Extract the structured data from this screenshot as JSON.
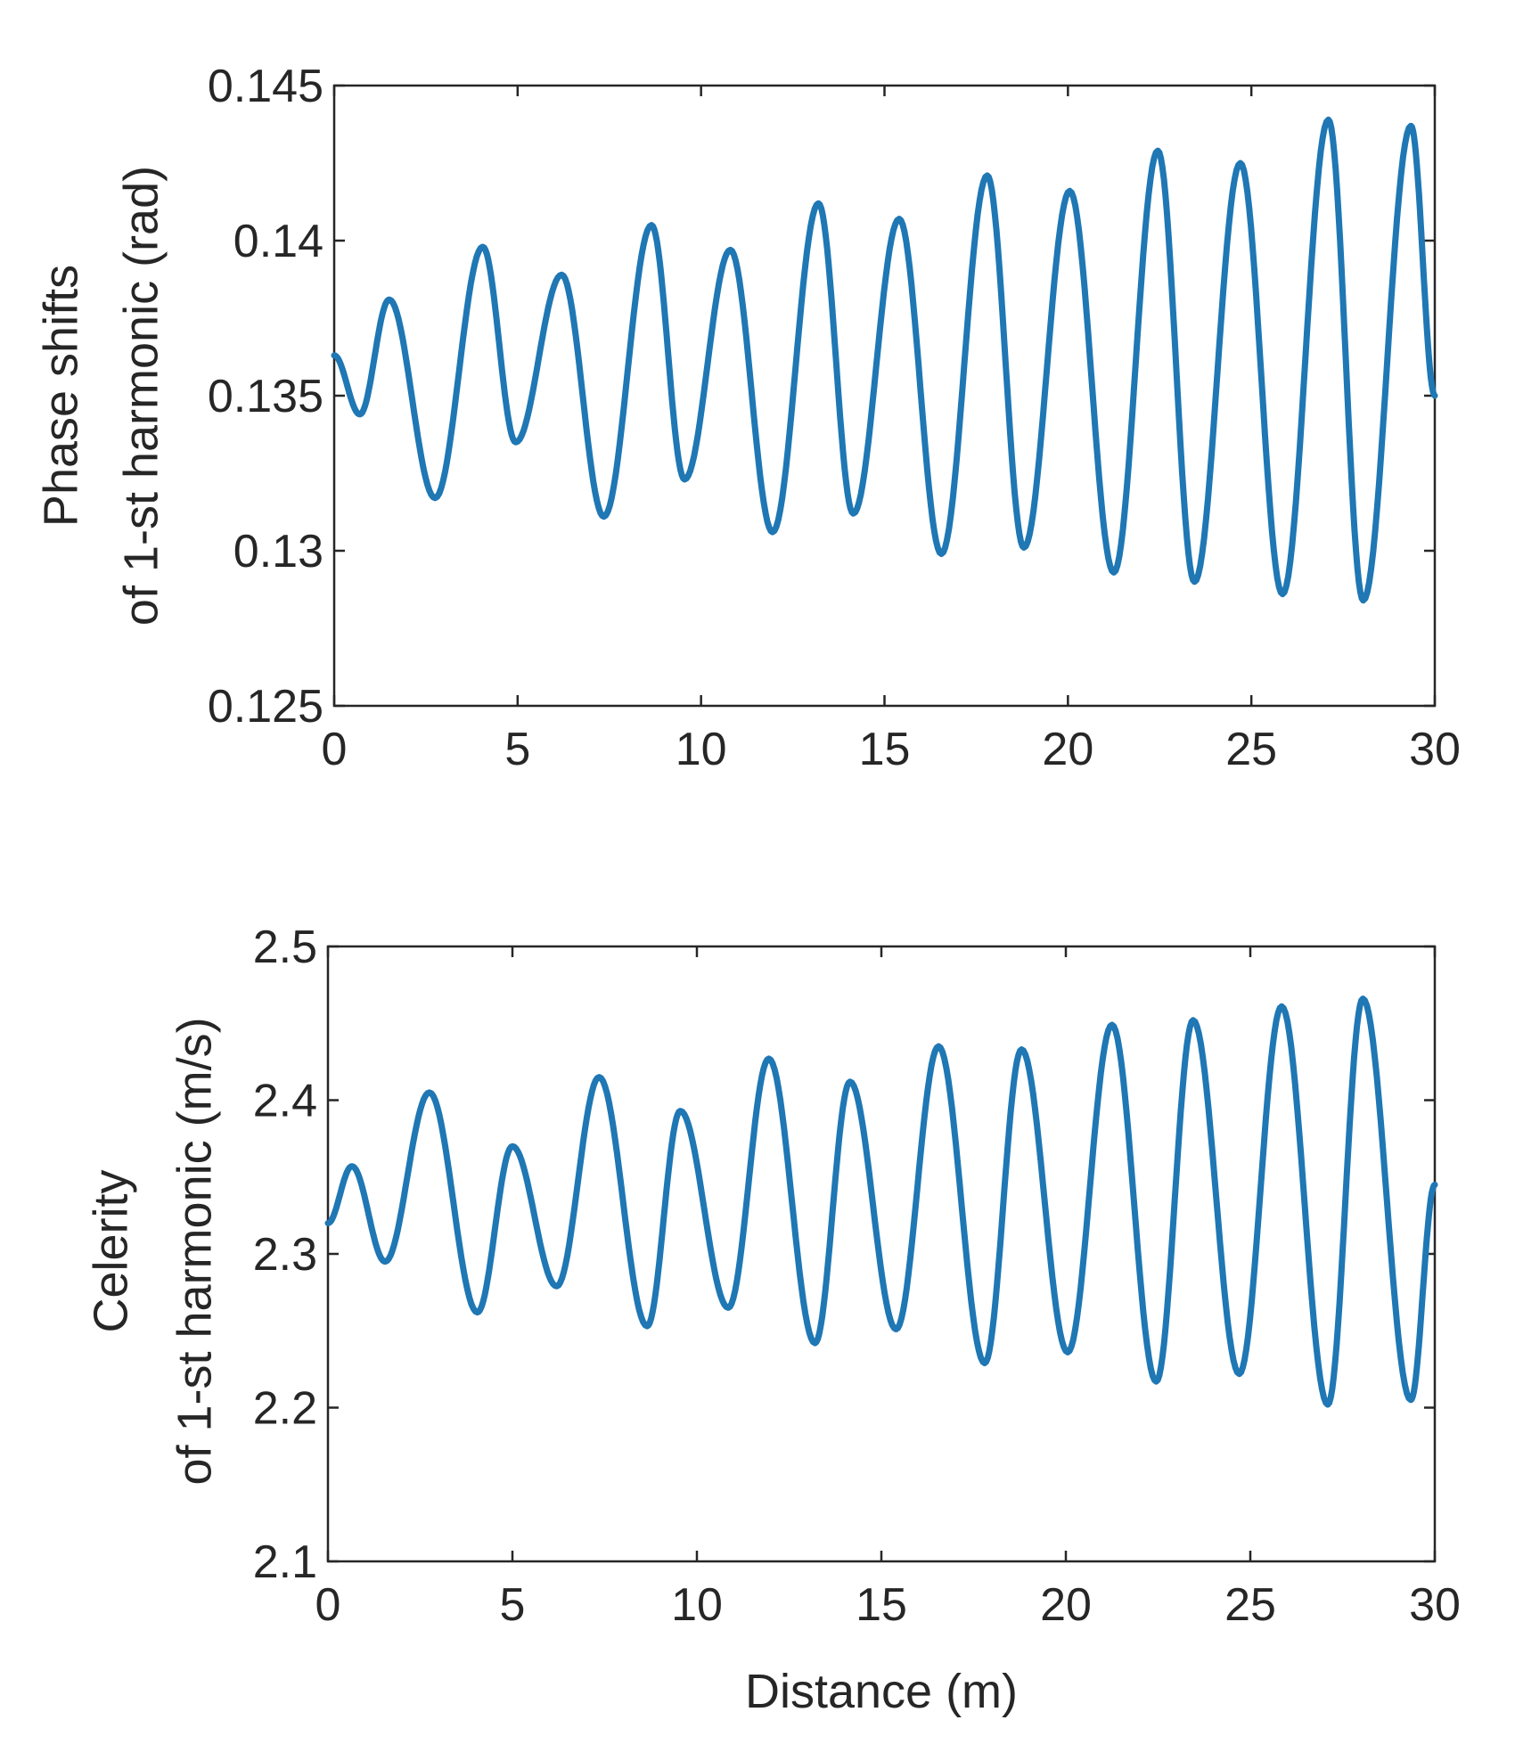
{
  "chart_data": [
    {
      "type": "line",
      "title": "",
      "xlabel": "",
      "ylabel": [
        "Phase shifts",
        "of 1-st harmonic (rad)"
      ],
      "xlim": [
        0,
        30
      ],
      "ylim": [
        0.125,
        0.145
      ],
      "xticks": [
        0,
        5,
        10,
        15,
        20,
        25,
        30
      ],
      "xtick_labels": [
        "0",
        "5",
        "10",
        "15",
        "20",
        "25",
        "30"
      ],
      "yticks": [
        0.125,
        0.13,
        0.135,
        0.14,
        0.145
      ],
      "ytick_labels": [
        "0.125",
        "0.13",
        "0.135",
        "0.14",
        "0.145"
      ],
      "grid": false,
      "color": "#1f77b4",
      "series": [
        {
          "name": "",
          "x": [
            0.0,
            0.7,
            1.5,
            2.75,
            4.05,
            4.95,
            6.2,
            7.35,
            8.65,
            9.55,
            10.8,
            11.95,
            13.2,
            14.15,
            15.4,
            16.55,
            17.8,
            18.8,
            20.05,
            21.25,
            22.45,
            23.45,
            24.7,
            25.85,
            27.1,
            28.05,
            29.35,
            30.0
          ],
          "y": [
            0.1363,
            0.1344,
            0.1381,
            0.1317,
            0.1398,
            0.1335,
            0.1389,
            0.1311,
            0.1405,
            0.1323,
            0.1397,
            0.1306,
            0.1412,
            0.1312,
            0.1407,
            0.1299,
            0.1421,
            0.1301,
            0.1416,
            0.1293,
            0.1429,
            0.129,
            0.1425,
            0.1286,
            0.1439,
            0.1284,
            0.1437,
            0.135
          ]
        }
      ]
    },
    {
      "type": "line",
      "title": "",
      "xlabel": "Distance (m)",
      "ylabel": [
        "Celerity",
        "of 1-st harmonic  (m/s)"
      ],
      "xlim": [
        0,
        30
      ],
      "ylim": [
        2.1,
        2.5
      ],
      "xticks": [
        0,
        5,
        10,
        15,
        20,
        25,
        30
      ],
      "xtick_labels": [
        "0",
        "5",
        "10",
        "15",
        "20",
        "25",
        "30"
      ],
      "yticks": [
        2.1,
        2.2,
        2.3,
        2.4,
        2.5
      ],
      "ytick_labels": [
        "2.1",
        "2.2",
        "2.3",
        "2.4",
        "2.5"
      ],
      "grid": false,
      "color": "#1f77b4",
      "series": [
        {
          "name": "",
          "x": [
            0.0,
            0.65,
            1.55,
            2.75,
            4.05,
            5.0,
            6.2,
            7.35,
            8.65,
            9.55,
            10.85,
            11.95,
            13.2,
            14.15,
            15.4,
            16.55,
            17.8,
            18.8,
            20.05,
            21.25,
            22.45,
            23.45,
            24.7,
            25.85,
            27.1,
            28.05,
            29.35,
            30.0
          ],
          "y": [
            2.32,
            2.357,
            2.295,
            2.405,
            2.262,
            2.37,
            2.279,
            2.415,
            2.253,
            2.393,
            2.265,
            2.427,
            2.242,
            2.412,
            2.251,
            2.435,
            2.229,
            2.433,
            2.236,
            2.449,
            2.217,
            2.452,
            2.222,
            2.461,
            2.202,
            2.466,
            2.205,
            2.345
          ]
        }
      ]
    }
  ]
}
